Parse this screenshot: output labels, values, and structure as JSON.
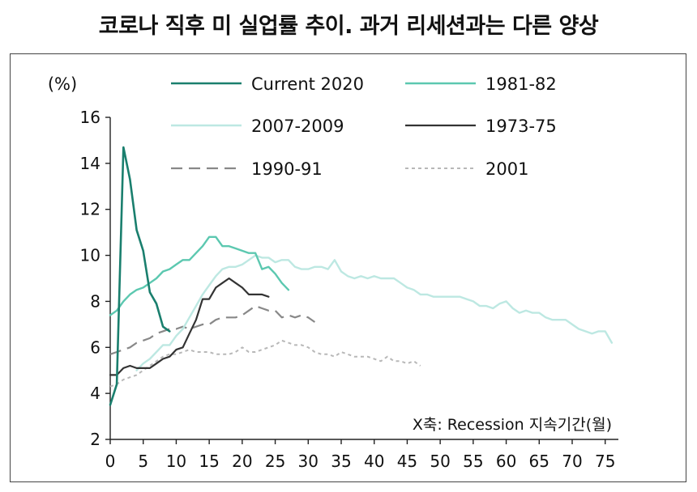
{
  "chart_data": {
    "type": "line",
    "title": "코로나 직후 미 실업률 추이. 과거 리세션과는 다른 양상",
    "ylabel": "(%)",
    "xlabel_note": "X축: Recession 지속기간(월)",
    "xlim": [
      0,
      77
    ],
    "ylim": [
      2,
      16
    ],
    "xticks": [
      0,
      5,
      10,
      15,
      20,
      25,
      30,
      35,
      40,
      45,
      50,
      55,
      60,
      65,
      70,
      75
    ],
    "yticks": [
      2,
      4,
      6,
      8,
      10,
      12,
      14,
      16
    ],
    "series": [
      {
        "name": "Current 2020",
        "color": "#1a7f6e",
        "style": "solid",
        "width": 2.6,
        "x": [
          0,
          1,
          2,
          3,
          4,
          5,
          6,
          7,
          8,
          9
        ],
        "y": [
          3.5,
          4.4,
          14.7,
          13.3,
          11.1,
          10.2,
          8.4,
          7.9,
          6.9,
          6.7
        ]
      },
      {
        "name": "1981-82",
        "color": "#5cc8b0",
        "style": "solid",
        "width": 2.4,
        "x": [
          0,
          1,
          2,
          3,
          4,
          5,
          6,
          7,
          8,
          9,
          10,
          11,
          12,
          13,
          14,
          15,
          16,
          17,
          18,
          19,
          20,
          21,
          22,
          23,
          24,
          25,
          26,
          27
        ],
        "y": [
          7.4,
          7.6,
          8.0,
          8.3,
          8.5,
          8.6,
          8.8,
          9.0,
          9.3,
          9.4,
          9.6,
          9.8,
          9.8,
          10.1,
          10.4,
          10.8,
          10.8,
          10.4,
          10.4,
          10.3,
          10.2,
          10.1,
          10.1,
          9.4,
          9.5,
          9.2,
          8.8,
          8.5
        ]
      },
      {
        "name": "2007-2009",
        "color": "#bde8e2",
        "style": "solid",
        "width": 2.4,
        "x": [
          4,
          5,
          6,
          7,
          8,
          9,
          10,
          11,
          12,
          13,
          14,
          15,
          16,
          17,
          18,
          19,
          20,
          21,
          22,
          23,
          24,
          25,
          26,
          27,
          28,
          29,
          30,
          31,
          32,
          33,
          34,
          35,
          36,
          37,
          38,
          39,
          40,
          41,
          42,
          43,
          44,
          45,
          46,
          47,
          48,
          49,
          50,
          51,
          52,
          53,
          54,
          55,
          56,
          57,
          58,
          59,
          60,
          61,
          62,
          63,
          64,
          65,
          66,
          67,
          68,
          69,
          70,
          71,
          72,
          73,
          74,
          75,
          76
        ],
        "y": [
          5.0,
          5.3,
          5.5,
          5.8,
          6.1,
          6.1,
          6.5,
          6.8,
          7.3,
          7.8,
          8.3,
          8.7,
          9.1,
          9.4,
          9.5,
          9.5,
          9.6,
          9.8,
          10.0,
          9.9,
          9.9,
          9.7,
          9.8,
          9.8,
          9.5,
          9.4,
          9.4,
          9.5,
          9.5,
          9.4,
          9.8,
          9.3,
          9.1,
          9.0,
          9.1,
          9.0,
          9.1,
          9.0,
          9.0,
          9.0,
          8.8,
          8.6,
          8.5,
          8.3,
          8.3,
          8.2,
          8.2,
          8.2,
          8.2,
          8.2,
          8.1,
          8.0,
          7.8,
          7.8,
          7.7,
          7.9,
          8.0,
          7.7,
          7.5,
          7.6,
          7.5,
          7.5,
          7.3,
          7.2,
          7.2,
          7.2,
          7.0,
          6.8,
          6.7,
          6.6,
          6.7,
          6.7,
          6.2
        ]
      },
      {
        "name": "1973-75",
        "color": "#333333",
        "style": "solid",
        "width": 2.2,
        "x": [
          0,
          1,
          2,
          3,
          4,
          5,
          6,
          7,
          8,
          9,
          10,
          11,
          12,
          13,
          14,
          15,
          16,
          17,
          18,
          19,
          20,
          21,
          22,
          23,
          24
        ],
        "y": [
          4.8,
          4.8,
          5.1,
          5.2,
          5.1,
          5.1,
          5.1,
          5.3,
          5.5,
          5.6,
          5.9,
          6.0,
          6.6,
          7.2,
          8.1,
          8.1,
          8.6,
          8.8,
          9.0,
          8.8,
          8.6,
          8.3,
          8.3,
          8.3,
          8.2
        ]
      },
      {
        "name": "1990-91",
        "color": "#888888",
        "style": "dashed",
        "width": 2.2,
        "x": [
          0,
          1,
          2,
          3,
          4,
          5,
          6,
          7,
          8,
          9,
          10,
          11,
          12,
          13,
          14,
          15,
          16,
          17,
          18,
          19,
          20,
          21,
          22,
          23,
          24,
          25,
          26,
          27,
          28,
          29,
          30,
          31
        ],
        "y": [
          5.7,
          5.8,
          5.9,
          6.0,
          6.2,
          6.3,
          6.4,
          6.6,
          6.7,
          6.8,
          6.8,
          6.9,
          6.8,
          6.9,
          7.0,
          7.0,
          7.2,
          7.3,
          7.3,
          7.3,
          7.4,
          7.6,
          7.8,
          7.7,
          7.6,
          7.6,
          7.3,
          7.4,
          7.3,
          7.4,
          7.3,
          7.1
        ]
      },
      {
        "name": "2001",
        "color": "#b8b8b8",
        "style": "dotted",
        "width": 2.0,
        "x": [
          0,
          1,
          2,
          3,
          4,
          5,
          6,
          7,
          8,
          9,
          10,
          11,
          12,
          13,
          14,
          15,
          16,
          17,
          18,
          19,
          20,
          21,
          22,
          23,
          24,
          25,
          26,
          27,
          28,
          29,
          30,
          31,
          32,
          33,
          34,
          35,
          36,
          37,
          38,
          39,
          40,
          41,
          42,
          43,
          44,
          45,
          46,
          47
        ],
        "y": [
          4.3,
          4.4,
          4.6,
          4.7,
          4.8,
          5.0,
          5.2,
          5.4,
          5.6,
          5.7,
          5.7,
          5.8,
          5.9,
          5.8,
          5.8,
          5.8,
          5.7,
          5.7,
          5.7,
          5.8,
          6.0,
          5.8,
          5.8,
          5.9,
          6.0,
          6.1,
          6.3,
          6.2,
          6.1,
          6.1,
          6.0,
          5.8,
          5.7,
          5.7,
          5.6,
          5.8,
          5.7,
          5.6,
          5.6,
          5.6,
          5.5,
          5.4,
          5.6,
          5.4,
          5.4,
          5.3,
          5.4,
          5.2
        ]
      }
    ]
  }
}
